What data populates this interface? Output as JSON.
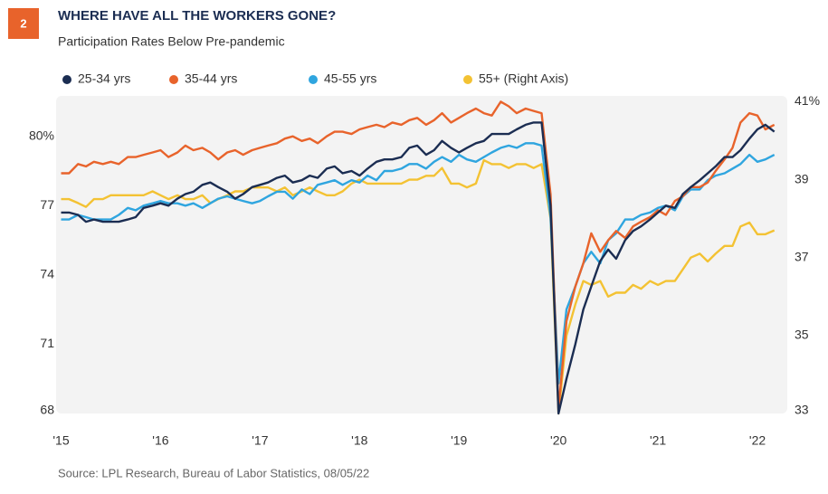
{
  "chart_data": {
    "type": "line",
    "figure_number": "2",
    "title": "WHERE HAVE ALL THE WORKERS GONE?",
    "subtitle": "Participation Rates Below Pre-pandemic",
    "source": "Source:  LPL Research, Bureau of Labor Statistics,  08/05/22",
    "legend": "top",
    "x": [
      2015,
      2015.08,
      2015.17,
      2015.25,
      2015.33,
      2015.42,
      2015.5,
      2015.58,
      2015.67,
      2015.75,
      2015.83,
      2015.92,
      2016,
      2016.08,
      2016.17,
      2016.25,
      2016.33,
      2016.42,
      2016.5,
      2016.58,
      2016.67,
      2016.75,
      2016.83,
      2016.92,
      2017,
      2017.08,
      2017.17,
      2017.25,
      2017.33,
      2017.42,
      2017.5,
      2017.58,
      2017.67,
      2017.75,
      2017.83,
      2017.92,
      2018,
      2018.08,
      2018.17,
      2018.25,
      2018.33,
      2018.42,
      2018.5,
      2018.58,
      2018.67,
      2018.75,
      2018.83,
      2018.92,
      2019,
      2019.08,
      2019.17,
      2019.25,
      2019.33,
      2019.42,
      2019.5,
      2019.58,
      2019.67,
      2019.75,
      2019.83,
      2019.92,
      2020,
      2020.08,
      2020.17,
      2020.25,
      2020.33,
      2020.42,
      2020.5,
      2020.58,
      2020.67,
      2020.75,
      2020.83,
      2020.92,
      2021,
      2021.08,
      2021.17,
      2021.25,
      2021.33,
      2021.42,
      2021.5,
      2021.58,
      2021.67,
      2021.75,
      2021.83,
      2021.92,
      2022,
      2022.08,
      2022.17
    ],
    "xlim": [
      2014.95,
      2022.3
    ],
    "xticks": [
      {
        "value": 2015,
        "label": "'15"
      },
      {
        "value": 2016,
        "label": "'16"
      },
      {
        "value": 2017,
        "label": "'17"
      },
      {
        "value": 2018,
        "label": "'18"
      },
      {
        "value": 2019,
        "label": "'19"
      },
      {
        "value": 2020,
        "label": "'20"
      },
      {
        "value": 2021,
        "label": "'21"
      },
      {
        "value": 2022,
        "label": "'22"
      }
    ],
    "ylim": [
      68,
      81.75
    ],
    "yticks": [
      68,
      71,
      74,
      77,
      {
        "value": 80,
        "label": "80%"
      }
    ],
    "y2lim": [
      33,
      41.15
    ],
    "y2ticks": [
      33,
      35,
      37,
      39,
      {
        "value": 41,
        "label": "41%"
      }
    ],
    "series": [
      {
        "name": "25-34 yrs",
        "color": "#1b2d52",
        "values": [
          76.7,
          76.7,
          76.6,
          76.3,
          76.4,
          76.3,
          76.3,
          76.3,
          76.4,
          76.5,
          76.9,
          77.0,
          77.1,
          77.0,
          77.3,
          77.5,
          77.6,
          77.9,
          78.0,
          77.8,
          77.6,
          77.3,
          77.5,
          77.8,
          77.9,
          78.0,
          78.2,
          78.3,
          78.0,
          78.1,
          78.3,
          78.2,
          78.6,
          78.7,
          78.4,
          78.5,
          78.3,
          78.6,
          78.9,
          79.0,
          79.0,
          79.1,
          79.5,
          79.6,
          79.2,
          79.4,
          79.8,
          79.5,
          79.3,
          79.5,
          79.7,
          79.8,
          80.1,
          80.1,
          80.1,
          80.3,
          80.5,
          80.6,
          80.6,
          77.0,
          68.0,
          69.5,
          71.0,
          72.5,
          73.5,
          74.6,
          75.1,
          74.7,
          75.5,
          75.9,
          76.1,
          76.4,
          76.7,
          77.0,
          76.9,
          77.5,
          77.8,
          78.1,
          78.4,
          78.7,
          79.1,
          79.1,
          79.4,
          79.9,
          80.3,
          80.5,
          80.2
        ]
      },
      {
        "name": "35-44 yrs",
        "color": "#e8632b",
        "values": [
          78.4,
          78.4,
          78.8,
          78.7,
          78.9,
          78.8,
          78.9,
          78.8,
          79.1,
          79.1,
          79.2,
          79.3,
          79.4,
          79.1,
          79.3,
          79.6,
          79.4,
          79.5,
          79.3,
          79.0,
          79.3,
          79.4,
          79.2,
          79.4,
          79.5,
          79.6,
          79.7,
          79.9,
          80.0,
          79.8,
          79.9,
          79.7,
          80.0,
          80.2,
          80.2,
          80.1,
          80.3,
          80.4,
          80.5,
          80.4,
          80.6,
          80.5,
          80.7,
          80.8,
          80.5,
          80.7,
          81.0,
          80.6,
          80.8,
          81.0,
          81.2,
          81.0,
          80.9,
          81.5,
          81.3,
          81.0,
          81.2,
          81.1,
          81.0,
          77.5,
          68.2,
          72.0,
          73.5,
          74.5,
          75.8,
          75.0,
          75.5,
          75.9,
          75.6,
          76.1,
          76.3,
          76.5,
          76.8,
          76.6,
          77.2,
          77.4,
          77.8,
          77.8,
          78.0,
          78.5,
          79.0,
          79.5,
          80.6,
          81.0,
          80.9,
          80.3,
          80.5
        ]
      },
      {
        "name": "45-55 yrs",
        "color": "#2fa5df",
        "values": [
          76.4,
          76.4,
          76.6,
          76.5,
          76.4,
          76.4,
          76.4,
          76.6,
          76.9,
          76.8,
          77.0,
          77.1,
          77.2,
          77.1,
          77.1,
          77.0,
          77.1,
          76.9,
          77.1,
          77.3,
          77.4,
          77.3,
          77.2,
          77.1,
          77.2,
          77.4,
          77.6,
          77.6,
          77.3,
          77.7,
          77.5,
          77.9,
          78.0,
          78.1,
          77.9,
          78.1,
          78.0,
          78.3,
          78.1,
          78.5,
          78.5,
          78.6,
          78.8,
          78.8,
          78.6,
          78.9,
          79.1,
          78.9,
          79.2,
          79.0,
          78.9,
          79.1,
          79.3,
          79.5,
          79.6,
          79.5,
          79.7,
          79.7,
          79.6,
          76.5,
          69.3,
          72.5,
          73.5,
          74.5,
          75.0,
          74.5,
          75.5,
          75.8,
          76.4,
          76.4,
          76.6,
          76.7,
          76.9,
          77.0,
          76.8,
          77.4,
          77.7,
          77.7,
          78.1,
          78.3,
          78.4,
          78.6,
          78.8,
          79.2,
          78.9,
          79.0,
          79.2
        ]
      },
      {
        "name": "55+ (Right Axis)",
        "color": "#f3c233",
        "axis": "y2",
        "values": [
          38.5,
          38.5,
          38.4,
          38.3,
          38.5,
          38.5,
          38.6,
          38.6,
          38.6,
          38.6,
          38.6,
          38.7,
          38.6,
          38.5,
          38.6,
          38.5,
          38.5,
          38.6,
          38.4,
          38.5,
          38.6,
          38.7,
          38.7,
          38.8,
          38.8,
          38.8,
          38.7,
          38.8,
          38.6,
          38.7,
          38.8,
          38.7,
          38.6,
          38.6,
          38.7,
          38.9,
          39.0,
          38.9,
          38.9,
          38.9,
          38.9,
          38.9,
          39.0,
          39.0,
          39.1,
          39.1,
          39.3,
          38.9,
          38.9,
          38.8,
          38.9,
          39.5,
          39.4,
          39.4,
          39.3,
          39.4,
          39.4,
          39.3,
          39.4,
          38.0,
          33.0,
          35.0,
          35.8,
          36.4,
          36.3,
          36.4,
          36.0,
          36.1,
          36.1,
          36.3,
          36.2,
          36.4,
          36.3,
          36.4,
          36.4,
          36.7,
          37.0,
          37.1,
          36.9,
          37.1,
          37.3,
          37.3,
          37.8,
          37.9,
          37.6,
          37.6,
          37.7
        ]
      }
    ]
  }
}
